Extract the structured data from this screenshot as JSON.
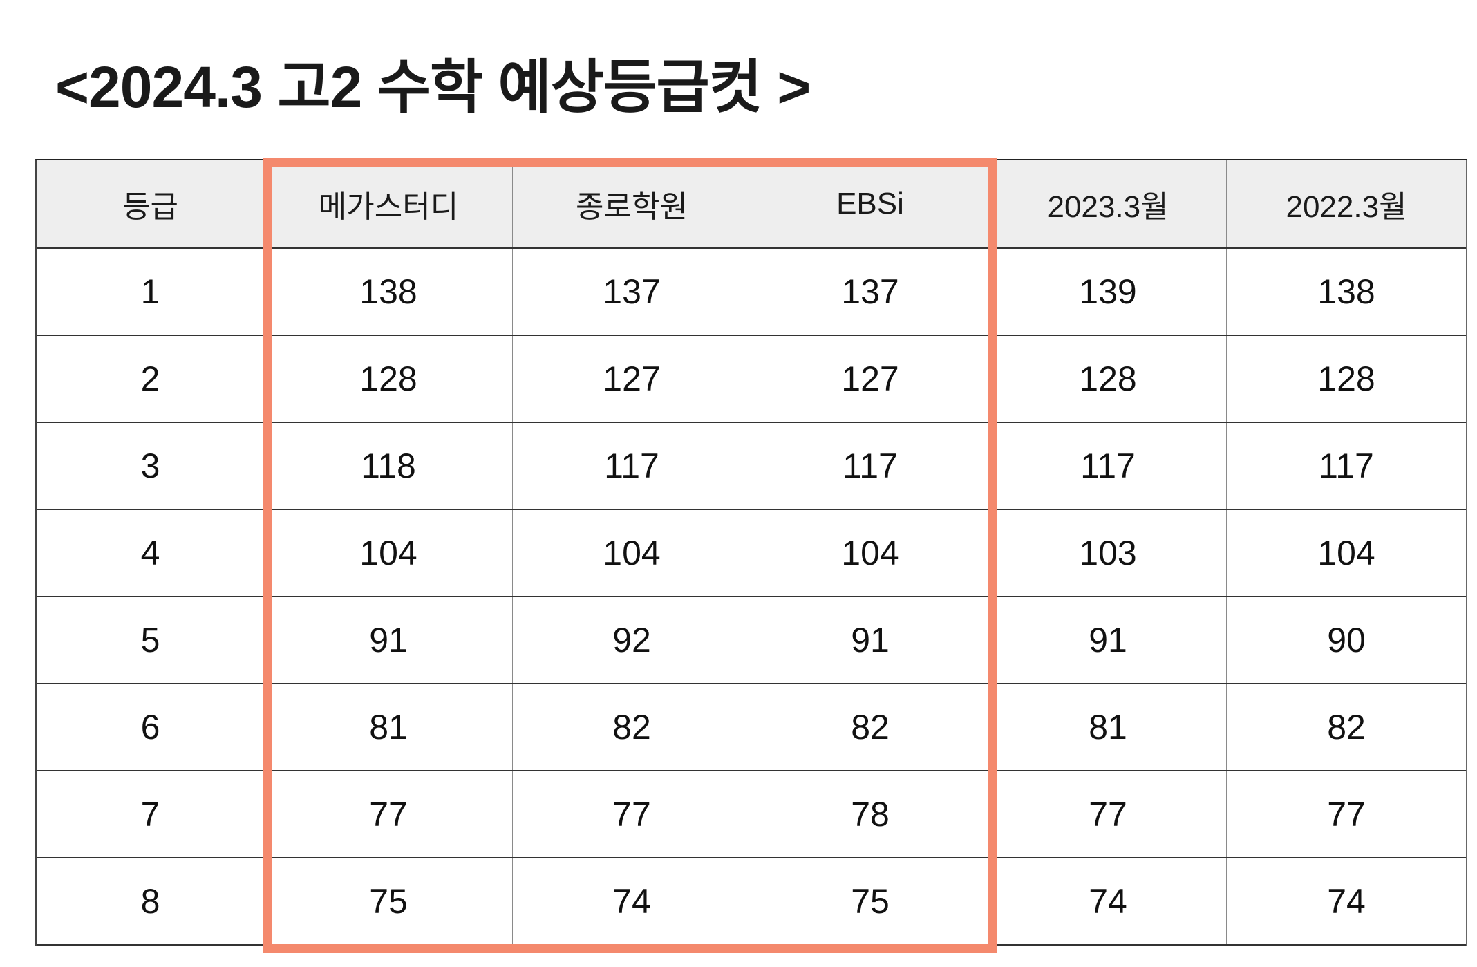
{
  "chart_data": {
    "type": "table",
    "title": "<2024.3 고2 수학 예상등급컷 >",
    "columns": [
      "등급",
      "메가스터디",
      "종로학원",
      "EBSi",
      "2023.3월",
      "2022.3월"
    ],
    "rows": [
      [
        1,
        138,
        137,
        137,
        139,
        138
      ],
      [
        2,
        128,
        127,
        127,
        128,
        128
      ],
      [
        3,
        118,
        117,
        117,
        117,
        117
      ],
      [
        4,
        104,
        104,
        104,
        103,
        104
      ],
      [
        5,
        91,
        92,
        91,
        91,
        90
      ],
      [
        6,
        81,
        82,
        82,
        81,
        82
      ],
      [
        7,
        77,
        77,
        78,
        77,
        77
      ],
      [
        8,
        75,
        74,
        75,
        74,
        74
      ]
    ],
    "highlighted_columns": [
      "메가스터디",
      "종로학원",
      "EBSi"
    ],
    "highlight_color": "#F4896D",
    "header_background": "#EEEEEE"
  }
}
